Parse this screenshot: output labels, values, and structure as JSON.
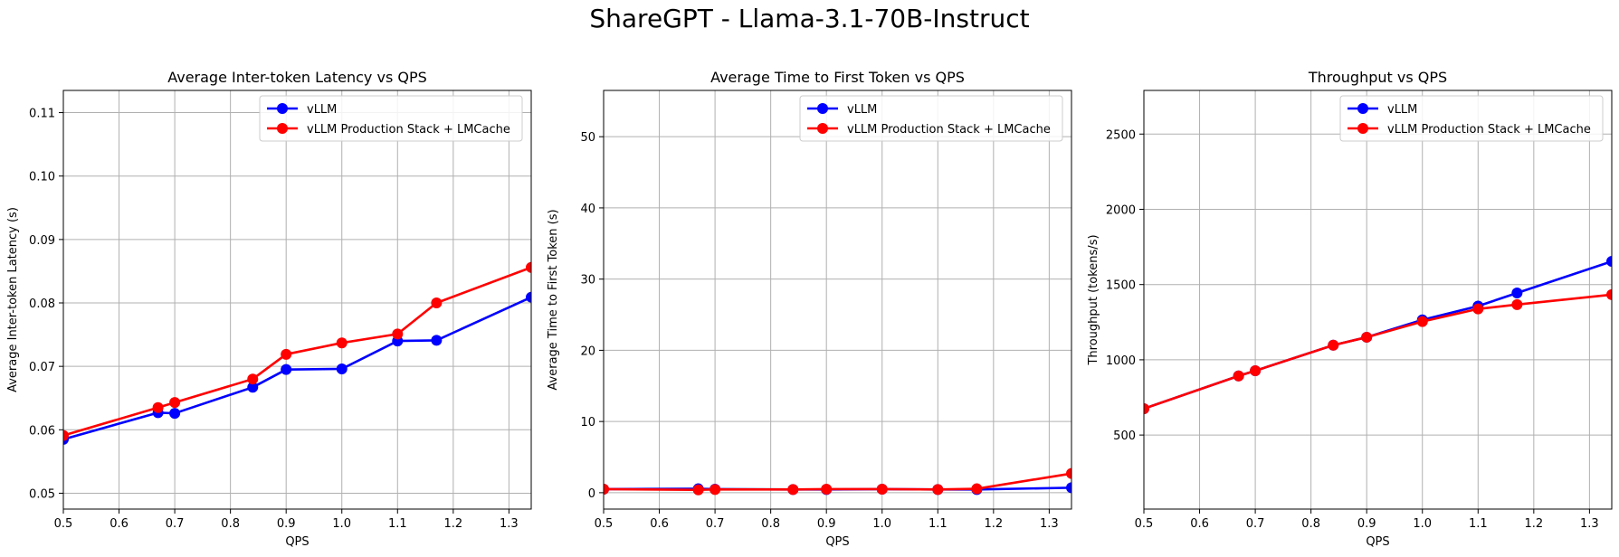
{
  "figure": {
    "title": "ShareGPT - Llama-3.1-70B-Instruct"
  },
  "colors": {
    "vllm": "#0000ff",
    "stack": "#ff0000",
    "grid": "#b0b0b0",
    "axis": "#000000"
  },
  "chart_data": [
    {
      "type": "line",
      "title": "Average Inter-token Latency vs QPS",
      "xlabel": "QPS",
      "ylabel": "Average Inter-token Latency (s)",
      "xlim": [
        0.5,
        1.34
      ],
      "ylim": [
        0.0475,
        0.1135
      ],
      "xticks": [
        0.5,
        0.6,
        0.7,
        0.8,
        0.9,
        1.0,
        1.1,
        1.2,
        1.3
      ],
      "xtick_labels": [
        "0.5",
        "0.6",
        "0.7",
        "0.8",
        "0.9",
        "1.0",
        "1.1",
        "1.2",
        "1.3"
      ],
      "yticks": [
        0.05,
        0.06,
        0.07,
        0.08,
        0.09,
        0.1,
        0.11
      ],
      "ytick_labels": [
        "0.05",
        "0.06",
        "0.07",
        "0.08",
        "0.09",
        "0.10",
        "0.11"
      ],
      "grid": true,
      "legend_position": "top-right",
      "series": [
        {
          "name": "vLLM",
          "color": "#0000ff",
          "x": [
            0.5,
            0.67,
            0.7,
            0.84,
            0.9,
            1.0,
            1.1,
            1.17,
            1.34
          ],
          "y": [
            0.0585,
            0.0627,
            0.0626,
            0.0667,
            0.0695,
            0.0696,
            0.074,
            0.0741,
            0.0809
          ]
        },
        {
          "name": "vLLM Production Stack + LMCache",
          "color": "#ff0000",
          "x": [
            0.5,
            0.67,
            0.7,
            0.84,
            0.9,
            1.0,
            1.1,
            1.17,
            1.34
          ],
          "y": [
            0.0591,
            0.0635,
            0.0643,
            0.068,
            0.0719,
            0.0737,
            0.0751,
            0.08,
            0.0856
          ]
        }
      ]
    },
    {
      "type": "line",
      "title": "Average Time to First Token vs QPS",
      "xlabel": "QPS",
      "ylabel": "Average Time to First Token (s)",
      "xlim": [
        0.5,
        1.34
      ],
      "ylim": [
        -2.3,
        56.5
      ],
      "xticks": [
        0.5,
        0.6,
        0.7,
        0.8,
        0.9,
        1.0,
        1.1,
        1.2,
        1.3
      ],
      "xtick_labels": [
        "0.5",
        "0.6",
        "0.7",
        "0.8",
        "0.9",
        "1.0",
        "1.1",
        "1.2",
        "1.3"
      ],
      "yticks": [
        0,
        10,
        20,
        30,
        40,
        50
      ],
      "ytick_labels": [
        "0",
        "10",
        "20",
        "30",
        "40",
        "50"
      ],
      "grid": true,
      "legend_position": "top-right",
      "series": [
        {
          "name": "vLLM",
          "color": "#0000ff",
          "x": [
            0.5,
            0.67,
            0.7,
            0.84,
            0.9,
            1.0,
            1.1,
            1.17,
            1.34
          ],
          "y": [
            0.5,
            0.55,
            0.5,
            0.45,
            0.45,
            0.5,
            0.45,
            0.45,
            0.7
          ]
        },
        {
          "name": "vLLM Production Stack + LMCache",
          "color": "#ff0000",
          "x": [
            0.5,
            0.67,
            0.7,
            0.84,
            0.9,
            1.0,
            1.1,
            1.17,
            1.34
          ],
          "y": [
            0.5,
            0.4,
            0.45,
            0.45,
            0.5,
            0.5,
            0.45,
            0.55,
            2.7
          ]
        }
      ]
    },
    {
      "type": "line",
      "title": "Throughput vs QPS",
      "xlabel": "QPS",
      "ylabel": "Throughput (tokens/s)",
      "xlim": [
        0.5,
        1.34
      ],
      "ylim": [
        8,
        2790
      ],
      "xticks": [
        0.5,
        0.6,
        0.7,
        0.8,
        0.9,
        1.0,
        1.1,
        1.2,
        1.3
      ],
      "xtick_labels": [
        "0.5",
        "0.6",
        "0.7",
        "0.8",
        "0.9",
        "1.0",
        "1.1",
        "1.2",
        "1.3"
      ],
      "yticks": [
        500,
        1000,
        1500,
        2000,
        2500
      ],
      "ytick_labels": [
        "500",
        "1000",
        "1500",
        "2000",
        "2500"
      ],
      "grid": true,
      "legend_position": "top-right",
      "series": [
        {
          "name": "vLLM",
          "color": "#0000ff",
          "x": [
            0.5,
            0.67,
            0.7,
            0.84,
            0.9,
            1.0,
            1.1,
            1.17,
            1.34
          ],
          "y": [
            675,
            893,
            927,
            1097,
            1150,
            1265,
            1357,
            1444,
            1654
          ]
        },
        {
          "name": "vLLM Production Stack + LMCache",
          "color": "#ff0000",
          "x": [
            0.5,
            0.67,
            0.7,
            0.84,
            0.9,
            1.0,
            1.1,
            1.17,
            1.34
          ],
          "y": [
            675,
            893,
            927,
            1097,
            1150,
            1254,
            1338,
            1367,
            1433
          ]
        }
      ]
    }
  ]
}
